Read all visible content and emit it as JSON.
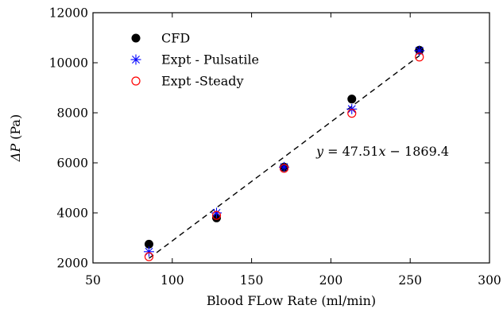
{
  "chart_data": {
    "type": "scatter",
    "xlabel": "Blood FLow Rate (ml/min)",
    "ylabel": {
      "symbol": "ΔP",
      "unit": "(Pa)"
    },
    "xlim": [
      50,
      300
    ],
    "ylim": [
      2000,
      12000
    ],
    "xticks": [
      50,
      100,
      150,
      200,
      250,
      300
    ],
    "yticks": [
      2000,
      4000,
      6000,
      8000,
      10000,
      12000
    ],
    "grid": false,
    "legend_position": "top-left",
    "series": [
      {
        "name": "CFD",
        "marker": "filled-circle",
        "color": "#000000",
        "x": [
          85.3,
          127.9,
          170.5,
          213.2,
          255.8
        ],
        "y": [
          2750,
          3800,
          5830,
          8550,
          10500
        ]
      },
      {
        "name": "Expt - Pulsatile",
        "marker": "asterisk",
        "color": "#0000ff",
        "x": [
          85.3,
          127.9,
          170.5,
          213.2,
          255.8
        ],
        "y": [
          2450,
          4000,
          5830,
          8150,
          10480
        ]
      },
      {
        "name": "Expt -Steady",
        "marker": "open-circle",
        "color": "#ff0000",
        "x": [
          85.3,
          127.9,
          170.5,
          213.2,
          255.8
        ],
        "y": [
          2250,
          3900,
          5780,
          7980,
          10230
        ]
      }
    ],
    "fit_line": {
      "style": "dashed",
      "color": "#000000",
      "slope": 47.51,
      "intercept": -1869.4,
      "x_range": [
        85.3,
        255.8
      ],
      "equation": {
        "lhs": "y",
        "eq": " = 47.51",
        "var": "x",
        "rest": " − 1869.4"
      }
    }
  }
}
